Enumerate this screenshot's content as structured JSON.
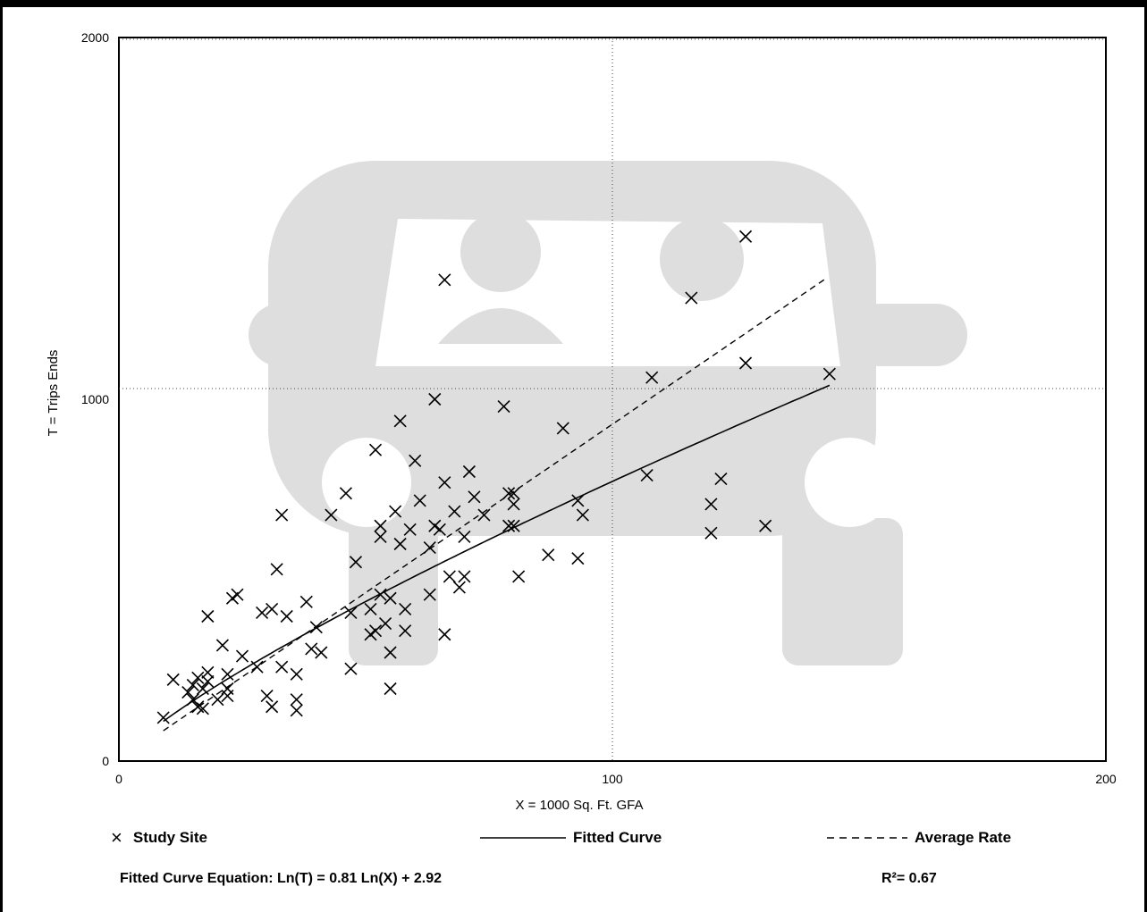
{
  "chart_data": {
    "type": "scatter",
    "xlabel": "X = 1000 Sq. Ft. GFA",
    "ylabel": "T = Trips Ends",
    "xlim": [
      0,
      200
    ],
    "ylim": [
      0,
      2000
    ],
    "x_ticks": [
      "0",
      "100",
      "200"
    ],
    "y_ticks": [
      "0",
      "1000",
      "2000"
    ],
    "grid": "dotted at x=100, y=1000 and y=2000",
    "series": [
      {
        "name": "Study Site",
        "marker": "x",
        "points": [
          [
            9,
            120
          ],
          [
            11,
            225
          ],
          [
            14,
            190
          ],
          [
            15,
            170
          ],
          [
            15,
            210
          ],
          [
            16,
            150
          ],
          [
            16,
            230
          ],
          [
            17,
            145
          ],
          [
            17,
            200
          ],
          [
            18,
            245
          ],
          [
            18,
            220
          ],
          [
            18,
            400
          ],
          [
            20,
            170
          ],
          [
            21,
            320
          ],
          [
            22,
            240
          ],
          [
            22,
            200
          ],
          [
            22,
            180
          ],
          [
            23,
            450
          ],
          [
            24,
            460
          ],
          [
            25,
            290
          ],
          [
            28,
            260
          ],
          [
            29,
            410
          ],
          [
            30,
            180
          ],
          [
            31,
            150
          ],
          [
            31,
            420
          ],
          [
            32,
            530
          ],
          [
            33,
            260
          ],
          [
            34,
            400
          ],
          [
            33,
            680
          ],
          [
            36,
            140
          ],
          [
            36,
            170
          ],
          [
            36,
            240
          ],
          [
            38,
            440
          ],
          [
            39,
            310
          ],
          [
            40,
            370
          ],
          [
            41,
            300
          ],
          [
            43,
            680
          ],
          [
            46,
            740
          ],
          [
            47,
            255
          ],
          [
            47,
            410
          ],
          [
            48,
            550
          ],
          [
            51,
            350
          ],
          [
            52,
            360
          ],
          [
            51,
            420
          ],
          [
            52,
            860
          ],
          [
            53,
            650
          ],
          [
            53,
            620
          ],
          [
            53,
            460
          ],
          [
            54,
            380
          ],
          [
            55,
            450
          ],
          [
            55,
            200
          ],
          [
            55,
            300
          ],
          [
            56,
            690
          ],
          [
            57,
            600
          ],
          [
            57,
            940
          ],
          [
            58,
            420
          ],
          [
            58,
            360
          ],
          [
            59,
            640
          ],
          [
            60,
            830
          ],
          [
            61,
            720
          ],
          [
            63,
            590
          ],
          [
            63,
            460
          ],
          [
            64,
            1000
          ],
          [
            64,
            650
          ],
          [
            65,
            640
          ],
          [
            66,
            1330
          ],
          [
            66,
            770
          ],
          [
            66,
            350
          ],
          [
            67,
            510
          ],
          [
            68,
            690
          ],
          [
            69,
            480
          ],
          [
            70,
            620
          ],
          [
            70,
            510
          ],
          [
            71,
            800
          ],
          [
            72,
            730
          ],
          [
            74,
            680
          ],
          [
            78,
            980
          ],
          [
            79,
            650
          ],
          [
            79,
            740
          ],
          [
            80,
            650
          ],
          [
            80,
            740
          ],
          [
            80,
            710
          ],
          [
            81,
            510
          ],
          [
            87,
            570
          ],
          [
            90,
            920
          ],
          [
            93,
            720
          ],
          [
            93,
            560
          ],
          [
            94,
            680
          ],
          [
            107,
            790
          ],
          [
            108,
            1060
          ],
          [
            116,
            1280
          ],
          [
            120,
            710
          ],
          [
            120,
            630
          ],
          [
            122,
            780
          ],
          [
            127,
            1100
          ],
          [
            127,
            1450
          ],
          [
            131,
            650
          ],
          [
            144,
            1070
          ]
        ]
      }
    ],
    "fitted_curve": {
      "name": "Fitted Curve",
      "a": 0.81,
      "b": 2.92,
      "x_range": [
        9,
        144
      ]
    },
    "average_rate": {
      "name": "Average Rate",
      "rate": 9.31,
      "x_range": [
        9,
        144
      ]
    },
    "annotations": {
      "equation": "Fitted Curve Equation: Ln(T) = 0.81 Ln(X) + 2.92",
      "r_squared": "R²= 0.67"
    }
  },
  "legend": {
    "study_site": "Study Site",
    "fitted_curve": "Fitted Curve",
    "average_rate": "Average Rate"
  }
}
